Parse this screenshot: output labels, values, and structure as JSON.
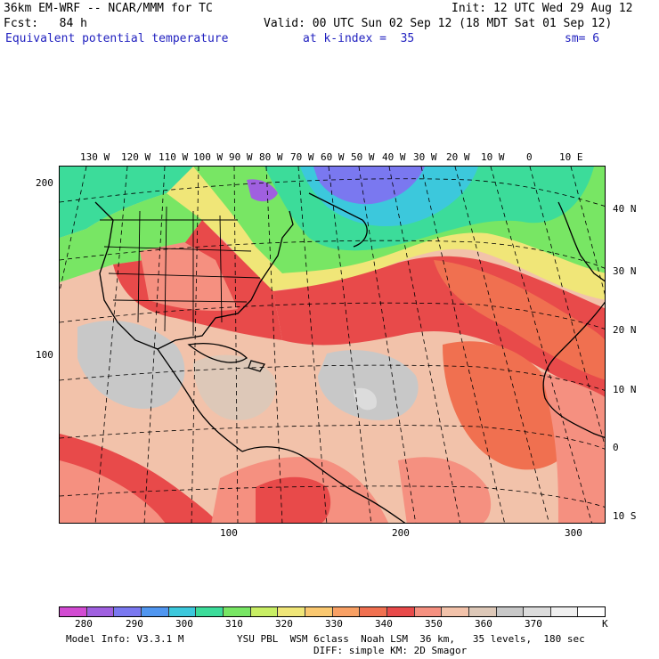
{
  "header": {
    "line1_left": "36km EM-WRF -- NCAR/MMM for TC",
    "line1_right": "Init: 12 UTC Wed 29 Aug 12",
    "line2_left": "Fcst:   84 h",
    "line2_right": "Valid: 00 UTC Sun 02 Sep 12 (18 MDT Sat 01 Sep 12)",
    "field_name": "Equivalent potential temperature",
    "level_label": "at k-index =  35",
    "smoothing": "sm= 6"
  },
  "map": {
    "longitude_labels": [
      "130 W",
      "120 W",
      "110 W",
      "100 W",
      "90 W",
      "80 W",
      "70 W",
      "60 W",
      "50 W",
      "40 W",
      "30 W",
      "20 W",
      "10 W",
      "0",
      "10 E"
    ],
    "latitude_labels": [
      "40 N",
      "30 N",
      "20 N",
      "10 N",
      "0",
      "10 S"
    ],
    "y_grid_ticks": [
      "200",
      "100"
    ],
    "x_grid_ticks": [
      "100",
      "200",
      "300"
    ]
  },
  "legend": {
    "colors": [
      "#d24bd2",
      "#a060e0",
      "#7a78f0",
      "#5096f0",
      "#3cc8dc",
      "#3cdc9a",
      "#78e664",
      "#c8ee64",
      "#f0e678",
      "#fac870",
      "#f8a064",
      "#f07050",
      "#e84a4a",
      "#f59080",
      "#f2c2aa",
      "#ddc8b8",
      "#c8c8c8",
      "#dcdcdc",
      "#f0f0f0",
      "#ffffff"
    ],
    "labels": [
      "280",
      "290",
      "300",
      "310",
      "320",
      "330",
      "340",
      "350",
      "360",
      "370",
      "K"
    ]
  },
  "footer": {
    "model_info": "Model Info: V3.3.1 M",
    "physics_line1": "YSU PBL  WSM 6class  Noah LSM  36 km,   35 levels,  180 sec",
    "physics_line2": "DIFF: simple KM: 2D Smagor"
  }
}
